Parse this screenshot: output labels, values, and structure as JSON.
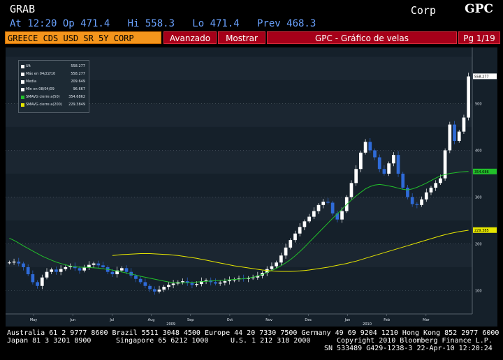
{
  "header": {
    "ticker_label": "GRAB",
    "market_sector": "Corp",
    "function_logo": "GPC",
    "quote_line": "At 12:20 Op 471.4   Hi 558.3   Lo 471.4   Prev 468.3"
  },
  "command_bar": {
    "security": "GREECE CDS USD SR 5Y CORP",
    "advanced_label": "Avanzado",
    "show_label": "Mostrar",
    "title": "GPC - Gráfico de velas",
    "page_indicator": "Pg 1/19"
  },
  "legend": {
    "rows": [
      {
        "label": "Ult",
        "value": "558.277",
        "color": "#ffffff"
      },
      {
        "label": "Máx en 04/22/10",
        "value": "558.277",
        "color": "#ffffff"
      },
      {
        "label": "Media",
        "value": "209.649",
        "color": "#ffffff"
      },
      {
        "label": "Mín en 08/04/09",
        "value": "96.667",
        "color": "#ffffff"
      },
      {
        "label": "SMAVG cierre a(50)",
        "value": "354.6862",
        "color": "#22c02a"
      },
      {
        "label": "SMAVG cierre a(200)",
        "value": "229.3849",
        "color": "#e6e600"
      }
    ]
  },
  "chart_data": {
    "type": "line",
    "title": "",
    "xlabel": "",
    "ylabel": "",
    "ylim": [
      50,
      620
    ],
    "y_ticks": [
      "100",
      "200",
      "300",
      "400",
      "500"
    ],
    "x_tick_labels": [
      "May",
      "Jun",
      "Jul",
      "Aug",
      "Sep",
      "Oct",
      "Nov",
      "Dec",
      "Jan",
      "Feb",
      "Mar"
    ],
    "year_labels": [
      {
        "month_index": 3,
        "label": "2009"
      },
      {
        "month_index": 8,
        "label": "2010"
      }
    ],
    "last_value_tags": [
      {
        "value": 558.277,
        "label": "558.277",
        "bg": "#ffffff",
        "fg": "#000000"
      },
      {
        "value": 354.686,
        "label": "354.686",
        "bg": "#22c02a",
        "fg": "#000000"
      },
      {
        "value": 229.385,
        "label": "229.385",
        "bg": "#e6e600",
        "fg": "#000000"
      }
    ],
    "colors": {
      "candle": "#ffffff",
      "candle_down": "#2f6bd8",
      "sma50": "#22c02a",
      "sma200": "#e6e600"
    },
    "series": [
      {
        "name": "Ult",
        "values": [
          160,
          162,
          158,
          150,
          135,
          118,
          110,
          128,
          140,
          145,
          140,
          146,
          150,
          152,
          148,
          143,
          149,
          155,
          158,
          154,
          150,
          140,
          135,
          143,
          148,
          140,
          132,
          125,
          118,
          110,
          103,
          98,
          102,
          108,
          112,
          115,
          118,
          120,
          116,
          112,
          114,
          120,
          122,
          118,
          115,
          117,
          120,
          122,
          124,
          126,
          125,
          127,
          128,
          132,
          138,
          146,
          152,
          160,
          175,
          192,
          208,
          222,
          236,
          248,
          258,
          270,
          283,
          290,
          288,
          265,
          252,
          270,
          300,
          330,
          360,
          395,
          418,
          400,
          385,
          360,
          350,
          372,
          390,
          350,
          320,
          300,
          285,
          283,
          295,
          310,
          320,
          330,
          340,
          400,
          455,
          420,
          440,
          470,
          558
        ]
      },
      {
        "name": "SMAVG cierre a(50)",
        "values": [
          212,
          205,
          196,
          188,
          180,
          172,
          166,
          160,
          156,
          152,
          150,
          150,
          149,
          148,
          146,
          144,
          141,
          138,
          135,
          131,
          128,
          125,
          122,
          119,
          117,
          116,
          117,
          118,
          119,
          120,
          121,
          122,
          123,
          124,
          125,
          127,
          130,
          135,
          141,
          148,
          156,
          166,
          178,
          192,
          207,
          222,
          237,
          252,
          266,
          281,
          295,
          307,
          318,
          325,
          327,
          325,
          322,
          318,
          315,
          318,
          324,
          331,
          339,
          346,
          350,
          352,
          354,
          355
        ]
      },
      {
        "name": "SMAVG cierre a(200)",
        "values": [
          175,
          177,
          178,
          179,
          179,
          178,
          177,
          175,
          172,
          169,
          165,
          161,
          157,
          153,
          150,
          147,
          144,
          142,
          141,
          141,
          142,
          144,
          147,
          150,
          154,
          158,
          163,
          169,
          175,
          181,
          187,
          193,
          199,
          205,
          211,
          217,
          222,
          226,
          229
        ]
      }
    ]
  },
  "footer": {
    "line1": "Australia 61 2 9777 8600 Brazil 5511 3048 4500 Europe 44 20 7330 7500 Germany 49 69 9204 1210 Hong Kong 852 2977 6000",
    "line2_left": "Japan 81 3 3201 8900",
    "line2_mid": "Singapore 65 6212 1000",
    "line2_us": "U.S. 1 212 318 2000",
    "line2_right": "Copyright 2010 Bloomberg Finance L.P.",
    "line3_right": "SN 533489 G429-1238-3 22-Apr-10 12:20:24"
  }
}
